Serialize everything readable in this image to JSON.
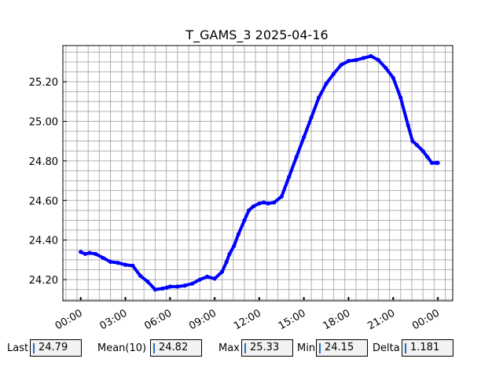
{
  "chart_data": {
    "type": "line",
    "title": "T_GAMS_3 2025-04-16",
    "xlabel": "",
    "ylabel": "",
    "x_unit": "hours from 2025-04-16 00:00",
    "xlim": [
      -1.2,
      25.0
    ],
    "ylim": [
      24.093,
      25.383
    ],
    "xticks": [
      {
        "value": 0,
        "label": "00:00"
      },
      {
        "value": 3,
        "label": "03:00"
      },
      {
        "value": 6,
        "label": "06:00"
      },
      {
        "value": 9,
        "label": "09:00"
      },
      {
        "value": 12,
        "label": "12:00"
      },
      {
        "value": 15,
        "label": "15:00"
      },
      {
        "value": 18,
        "label": "18:00"
      },
      {
        "value": 21,
        "label": "21:00"
      },
      {
        "value": 24,
        "label": "00:00"
      }
    ],
    "yticks": [
      {
        "value": 24.2,
        "label": "24.20"
      },
      {
        "value": 24.4,
        "label": "24.40"
      },
      {
        "value": 24.6,
        "label": "24.60"
      },
      {
        "value": 24.8,
        "label": "24.80"
      },
      {
        "value": 25.0,
        "label": "25.00"
      },
      {
        "value": 25.2,
        "label": "25.20"
      }
    ],
    "grid": true,
    "series": [
      {
        "color": "#0000ff",
        "x": [
          0,
          0.3,
          0.6,
          1.0,
          1.5,
          2.0,
          2.5,
          3.0,
          3.5,
          4.0,
          4.5,
          5.0,
          5.5,
          5.8,
          6.0,
          6.5,
          7.0,
          7.5,
          8.0,
          8.5,
          9.0,
          9.5,
          9.8,
          10.0,
          10.3,
          10.6,
          11.0,
          11.3,
          11.6,
          12.0,
          12.3,
          12.6,
          13.0,
          13.5,
          14.0,
          14.5,
          15.0,
          15.5,
          16.0,
          16.5,
          17.0,
          17.5,
          18.0,
          18.5,
          19.0,
          19.5,
          20.0,
          20.5,
          21.0,
          21.5,
          22.0,
          22.3,
          22.6,
          23.0,
          23.3,
          23.6,
          23.9,
          24.0
        ],
        "y": [
          24.34,
          24.33,
          24.335,
          24.33,
          24.31,
          24.29,
          24.285,
          24.275,
          24.27,
          24.22,
          24.19,
          24.15,
          24.155,
          24.16,
          24.165,
          24.165,
          24.17,
          24.18,
          24.2,
          24.215,
          24.205,
          24.24,
          24.29,
          24.33,
          24.37,
          24.43,
          24.5,
          24.55,
          24.57,
          24.585,
          24.59,
          24.585,
          24.59,
          24.62,
          24.72,
          24.82,
          24.92,
          25.02,
          25.12,
          25.19,
          25.24,
          25.285,
          25.305,
          25.31,
          25.32,
          25.33,
          25.31,
          25.27,
          25.22,
          25.12,
          24.98,
          24.9,
          24.88,
          24.85,
          24.82,
          24.79,
          24.79,
          24.79
        ]
      }
    ]
  },
  "stats": {
    "last": {
      "label": "Last",
      "value": "24.79"
    },
    "mean": {
      "label": "Mean(10)",
      "value": "24.82"
    },
    "max": {
      "label": "Max",
      "value": "25.33"
    },
    "min": {
      "label": "Min",
      "value": "24.15"
    },
    "delta": {
      "label": "Delta",
      "value": "1.181"
    }
  }
}
